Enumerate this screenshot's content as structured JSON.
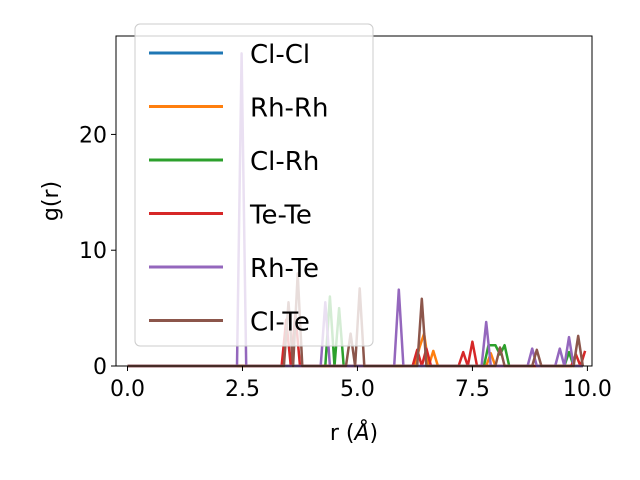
{
  "chart_data": {
    "type": "line",
    "xlabel_prefix": "r (",
    "xlabel_unit": "Å",
    "xlabel_suffix": ")",
    "ylabel": "g(r)",
    "xlim": [
      -0.25,
      10.1
    ],
    "ylim": [
      0,
      28.5
    ],
    "xticks": [
      0.0,
      2.5,
      5.0,
      7.5,
      10.0
    ],
    "xtick_labels": [
      "0.0",
      "2.5",
      "5.0",
      "7.5",
      "10.0"
    ],
    "yticks": [
      0,
      10,
      20
    ],
    "ytick_labels": [
      "0",
      "10",
      "20"
    ],
    "legend_position": "upper-left",
    "series": [
      {
        "name": "Cl-Cl",
        "color": "#1f77b4",
        "points": [
          [
            0,
            0
          ],
          [
            9.9,
            0
          ]
        ]
      },
      {
        "name": "Rh-Rh",
        "color": "#ff7f0e",
        "points": [
          [
            0,
            0
          ],
          [
            6.25,
            0
          ],
          [
            6.35,
            1.6
          ],
          [
            6.45,
            2.8
          ],
          [
            6.55,
            0
          ],
          [
            6.65,
            1.3
          ],
          [
            6.75,
            0
          ],
          [
            7.8,
            0
          ],
          [
            7.9,
            1.1
          ],
          [
            8.0,
            0
          ],
          [
            9.9,
            0
          ]
        ]
      },
      {
        "name": "Cl-Rh",
        "color": "#2ca02c",
        "points": [
          [
            0,
            0
          ],
          [
            4.3,
            0
          ],
          [
            4.4,
            6.0
          ],
          [
            4.5,
            0
          ],
          [
            4.6,
            5.0
          ],
          [
            4.7,
            0
          ],
          [
            7.75,
            0
          ],
          [
            7.85,
            1.8
          ],
          [
            8.0,
            1.8
          ],
          [
            8.1,
            1.0
          ],
          [
            8.2,
            1.8
          ],
          [
            8.3,
            0
          ],
          [
            9.5,
            0
          ],
          [
            9.6,
            1.2
          ],
          [
            9.7,
            0
          ],
          [
            9.9,
            0
          ]
        ]
      },
      {
        "name": "Te-Te",
        "color": "#d62728",
        "points": [
          [
            0,
            0
          ],
          [
            3.35,
            0
          ],
          [
            3.45,
            4.0
          ],
          [
            3.55,
            0
          ],
          [
            3.65,
            4.5
          ],
          [
            3.75,
            0
          ],
          [
            6.2,
            0
          ],
          [
            6.3,
            1.4
          ],
          [
            6.4,
            0
          ],
          [
            6.5,
            1.5
          ],
          [
            6.6,
            0
          ],
          [
            7.2,
            0
          ],
          [
            7.3,
            1.2
          ],
          [
            7.4,
            0
          ],
          [
            7.5,
            2.1
          ],
          [
            7.6,
            0
          ],
          [
            9.65,
            0
          ],
          [
            9.75,
            1.0
          ],
          [
            9.85,
            0
          ],
          [
            9.95,
            1.3
          ]
        ]
      },
      {
        "name": "Rh-Te",
        "color": "#9467bd",
        "points": [
          [
            0,
            0
          ],
          [
            2.38,
            0
          ],
          [
            2.48,
            27.0
          ],
          [
            2.58,
            0
          ],
          [
            4.2,
            0
          ],
          [
            4.3,
            5.5
          ],
          [
            4.4,
            0
          ],
          [
            5.8,
            0
          ],
          [
            5.9,
            6.6
          ],
          [
            6.0,
            0
          ],
          [
            7.7,
            0
          ],
          [
            7.8,
            3.8
          ],
          [
            7.9,
            0
          ],
          [
            8.7,
            0
          ],
          [
            8.8,
            1.5
          ],
          [
            8.9,
            0
          ],
          [
            9.3,
            0
          ],
          [
            9.4,
            1.5
          ],
          [
            9.5,
            0
          ],
          [
            9.6,
            2.5
          ],
          [
            9.7,
            0
          ],
          [
            9.9,
            0
          ]
        ]
      },
      {
        "name": "Cl-Te",
        "color": "#8c564b",
        "points": [
          [
            0,
            0
          ],
          [
            3.4,
            0
          ],
          [
            3.5,
            5.5
          ],
          [
            3.6,
            0
          ],
          [
            3.7,
            8.0
          ],
          [
            3.8,
            0
          ],
          [
            4.75,
            0
          ],
          [
            4.85,
            2.8
          ],
          [
            4.95,
            0
          ],
          [
            5.05,
            6.7
          ],
          [
            5.15,
            0
          ],
          [
            6.3,
            0
          ],
          [
            6.4,
            5.8
          ],
          [
            6.5,
            0
          ],
          [
            8.0,
            0
          ],
          [
            8.1,
            1.6
          ],
          [
            8.2,
            0
          ],
          [
            8.8,
            0
          ],
          [
            8.9,
            1.4
          ],
          [
            9.0,
            0
          ],
          [
            9.7,
            0
          ],
          [
            9.8,
            2.6
          ],
          [
            9.9,
            0
          ]
        ]
      }
    ]
  }
}
